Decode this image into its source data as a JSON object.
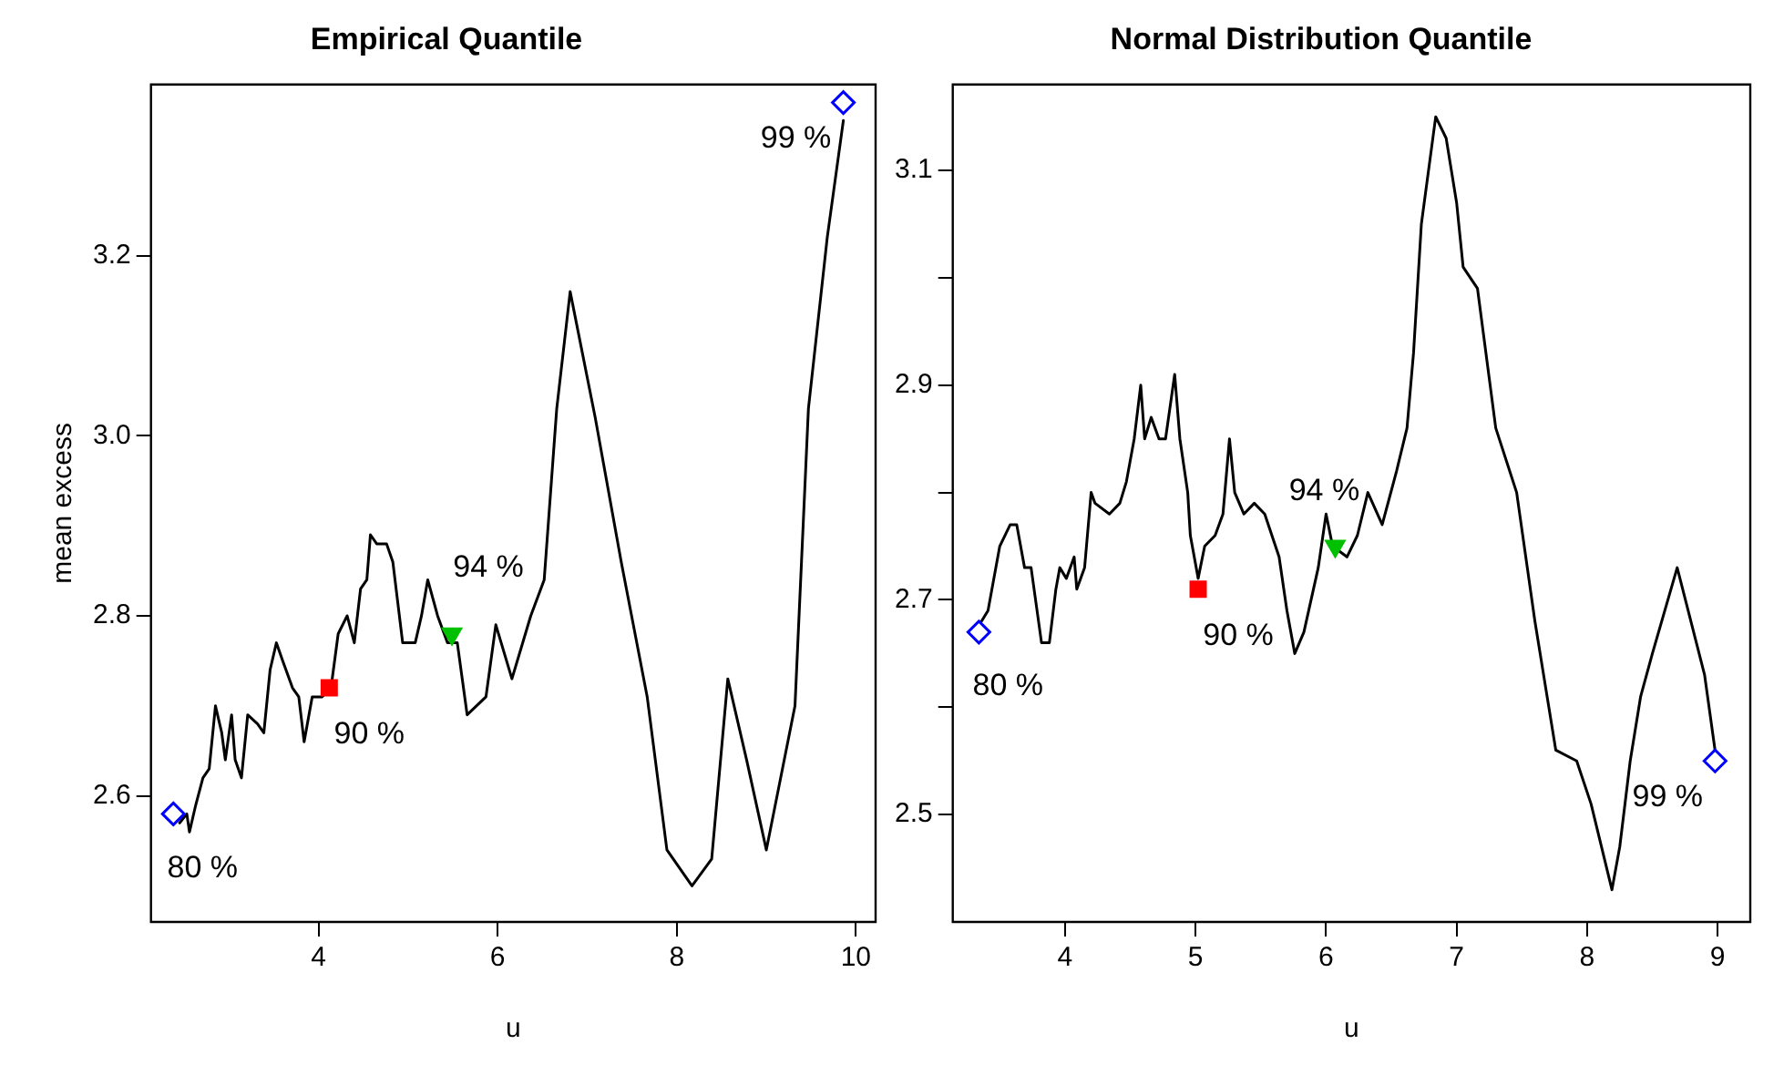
{
  "chart_data": [
    {
      "type": "line",
      "title": "Empirical Quantile",
      "xlabel": "u",
      "ylabel": "mean excess",
      "xlim": [
        2.13,
        10.22
      ],
      "ylim": [
        2.46,
        3.39
      ],
      "xticks": [
        4,
        6,
        8,
        10
      ],
      "yticks": [
        2.6,
        2.8,
        {
          "value": 3.0,
          "label": "3.0"
        },
        3.2
      ],
      "grid": false,
      "series": [
        {
          "type": "line",
          "color": "#000000",
          "marker": "none",
          "x": [
            2.45,
            2.53,
            2.56,
            2.63,
            2.71,
            2.78,
            2.85,
            2.92,
            2.96,
            3.03,
            3.07,
            3.14,
            3.21,
            3.32,
            3.39,
            3.46,
            3.53,
            3.6,
            3.71,
            3.78,
            3.84,
            3.93,
            4.04,
            4.14,
            4.22,
            4.32,
            4.4,
            4.47,
            4.54,
            4.58,
            4.65,
            4.76,
            4.83,
            4.94,
            5.08,
            5.15,
            5.22,
            5.33,
            5.44,
            5.55,
            5.66,
            5.87,
            5.98,
            6.16,
            6.37,
            6.52,
            6.66,
            6.81,
            7.09,
            7.38,
            7.67,
            7.89,
            8.17,
            8.39,
            8.57,
            8.78,
            9.0,
            9.32,
            9.47,
            9.68,
            9.86
          ],
          "values": [
            2.57,
            2.58,
            2.56,
            2.59,
            2.62,
            2.63,
            2.7,
            2.67,
            2.64,
            2.69,
            2.64,
            2.62,
            2.69,
            2.68,
            2.67,
            2.74,
            2.77,
            2.75,
            2.72,
            2.71,
            2.66,
            2.71,
            2.71,
            2.72,
            2.78,
            2.8,
            2.77,
            2.83,
            2.84,
            2.89,
            2.88,
            2.88,
            2.86,
            2.77,
            2.77,
            2.8,
            2.84,
            2.8,
            2.77,
            2.77,
            2.69,
            2.71,
            2.79,
            2.73,
            2.8,
            2.84,
            3.03,
            3.16,
            3.02,
            2.86,
            2.71,
            2.54,
            2.5,
            2.53,
            2.73,
            2.64,
            2.54,
            2.7,
            3.03,
            3.22,
            3.35
          ]
        },
        {
          "type": "scatter",
          "color": "#0000ff",
          "marker": "diamond",
          "x": [
            2.38
          ],
          "values": [
            2.58
          ]
        },
        {
          "type": "scatter",
          "color": "#ff0000",
          "marker": "square",
          "x": [
            4.12
          ],
          "values": [
            2.72
          ]
        },
        {
          "type": "scatter",
          "color": "#00c000",
          "marker": "triangle",
          "x": [
            5.49
          ],
          "values": [
            2.78
          ]
        },
        {
          "type": "scatter",
          "color": "#0000ff",
          "marker": "diamond",
          "x": [
            9.86
          ],
          "values": [
            3.37
          ]
        }
      ],
      "annotations": [
        {
          "text": "80 %",
          "x": 2.38,
          "y": 2.58
        },
        {
          "text": "90 %",
          "x": 4.12,
          "y": 2.72
        },
        {
          "text": "94 %",
          "x": 5.49,
          "y": 2.78
        },
        {
          "text": "99 %",
          "x": 9.86,
          "y": 3.37
        }
      ]
    },
    {
      "type": "line",
      "title": "Normal Distribution Quantile",
      "xlabel": "u",
      "xlim": [
        3.14,
        9.25
      ],
      "ylim": [
        2.4,
        3.18
      ],
      "xticks": [
        4,
        5,
        6,
        7,
        8,
        9
      ],
      "yticks": [
        2.5,
        {
          "value": 2.6,
          "label": null
        },
        2.7,
        {
          "value": 2.8,
          "label": null
        },
        2.9,
        {
          "value": 3.0,
          "label": null
        },
        3.1
      ],
      "grid": false,
      "series": [
        {
          "type": "line",
          "color": "#000000",
          "marker": "none",
          "x": [
            3.36,
            3.41,
            3.5,
            3.58,
            3.63,
            3.69,
            3.74,
            3.82,
            3.88,
            3.93,
            3.96,
            4.01,
            4.07,
            4.09,
            4.15,
            4.2,
            4.23,
            4.34,
            4.42,
            4.47,
            4.53,
            4.58,
            4.61,
            4.66,
            4.72,
            4.77,
            4.84,
            4.88,
            4.94,
            4.96,
            5.02,
            5.07,
            5.15,
            5.21,
            5.26,
            5.3,
            5.37,
            5.45,
            5.53,
            5.64,
            5.7,
            5.76,
            5.83,
            5.94,
            6.0,
            6.05,
            6.16,
            6.24,
            6.32,
            6.43,
            6.54,
            6.62,
            6.67,
            6.73,
            6.84,
            6.92,
            7.0,
            7.05,
            7.16,
            7.3,
            7.46,
            7.6,
            7.76,
            7.92,
            8.03,
            8.19,
            8.25,
            8.33,
            8.41,
            8.5,
            8.69,
            8.9,
            8.98
          ],
          "values": [
            2.68,
            2.69,
            2.75,
            2.77,
            2.77,
            2.73,
            2.73,
            2.66,
            2.66,
            2.71,
            2.73,
            2.72,
            2.74,
            2.71,
            2.73,
            2.8,
            2.79,
            2.78,
            2.79,
            2.81,
            2.85,
            2.9,
            2.85,
            2.87,
            2.85,
            2.85,
            2.91,
            2.85,
            2.8,
            2.76,
            2.72,
            2.75,
            2.76,
            2.78,
            2.85,
            2.8,
            2.78,
            2.79,
            2.78,
            2.74,
            2.69,
            2.65,
            2.67,
            2.73,
            2.78,
            2.75,
            2.74,
            2.76,
            2.8,
            2.77,
            2.82,
            2.86,
            2.93,
            3.05,
            3.15,
            3.13,
            3.07,
            3.01,
            2.99,
            2.86,
            2.8,
            2.68,
            2.56,
            2.55,
            2.51,
            2.43,
            2.47,
            2.55,
            2.61,
            2.65,
            2.73,
            2.63,
            2.56
          ]
        },
        {
          "type": "scatter",
          "color": "#0000ff",
          "marker": "diamond",
          "x": [
            3.34
          ],
          "values": [
            2.67
          ]
        },
        {
          "type": "scatter",
          "color": "#ff0000",
          "marker": "square",
          "x": [
            5.02
          ],
          "values": [
            2.71
          ]
        },
        {
          "type": "scatter",
          "color": "#00c000",
          "marker": "triangle",
          "x": [
            6.07
          ],
          "values": [
            2.75
          ]
        },
        {
          "type": "scatter",
          "color": "#0000ff",
          "marker": "diamond",
          "x": [
            8.98
          ],
          "values": [
            2.55
          ]
        }
      ],
      "annotations": [
        {
          "text": "80 %",
          "x": 3.34,
          "y": 2.67
        },
        {
          "text": "90 %",
          "x": 5.02,
          "y": 2.71
        },
        {
          "text": "94 %",
          "x": 6.07,
          "y": 2.75
        },
        {
          "text": "99 %",
          "x": 8.98,
          "y": 2.55
        }
      ]
    }
  ]
}
